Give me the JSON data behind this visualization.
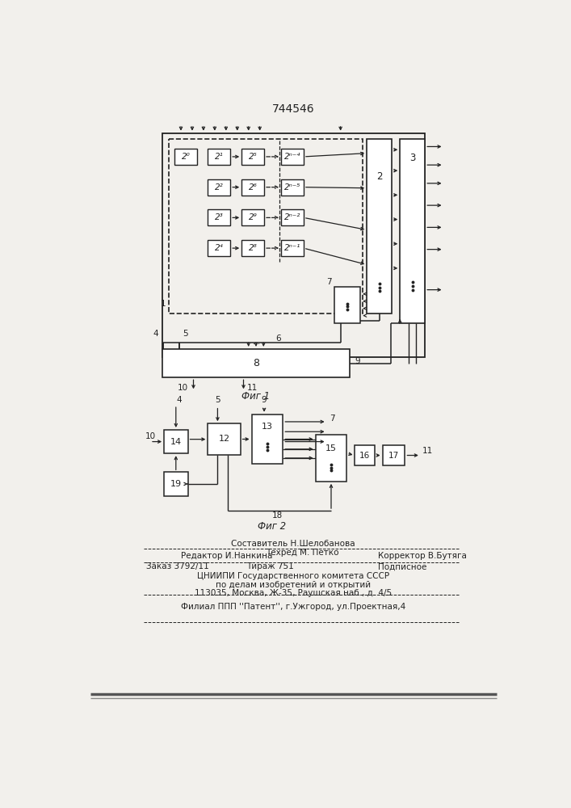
{
  "title": "744546",
  "fig1_label": "Фиг 1",
  "fig2_label": "Фиг 2",
  "bg_color": "#f2f0ec",
  "line_color": "#222222",
  "box_color": "#ffffff",
  "footer": {
    "line1_center": "Составитель Н.Шелобанова",
    "line2_left": "Редактор И.Нанкина",
    "line2_center": "Техред М. Петко",
    "line2_right": "Корректор В.Бутяга",
    "line3_left": "Заказ 3792/11",
    "line3_center": "Тираж 751",
    "line3_right": "Подписное",
    "line4": "ЦНИИПИ Государственного комитета СССР",
    "line5": "по делам изобретений и открытий",
    "line6": "113035, Москва, Ж-35, Раушская наб., д. 4/5",
    "line7": "Филиал ППП ''Патент'', г.Ужгород, ул.Проектная,4"
  }
}
